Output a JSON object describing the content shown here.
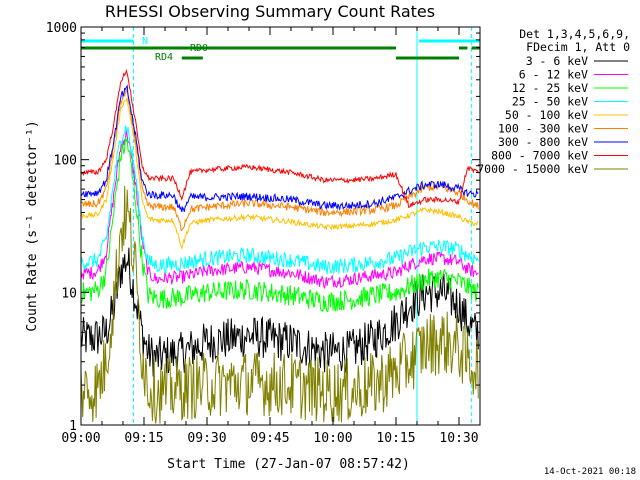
{
  "chart_data": {
    "type": "line",
    "title": "RHESSI Observing Summary Count Rates",
    "xlabel": "Start Time (27-Jan-07 08:57:42)",
    "ylabel": "Count Rate (s⁻¹ detector⁻¹)",
    "x_unit": "minutes after 09:00 UT",
    "xlim": [
      0,
      95
    ],
    "ylim": [
      1,
      1000
    ],
    "yscale": "log",
    "x_ticks": [
      {
        "value": 0,
        "label": "09:00"
      },
      {
        "value": 15,
        "label": "09:15"
      },
      {
        "value": 30,
        "label": "09:30"
      },
      {
        "value": 45,
        "label": "09:45"
      },
      {
        "value": 60,
        "label": "10:00"
      },
      {
        "value": 75,
        "label": "10:15"
      },
      {
        "value": 90,
        "label": "10:30"
      }
    ],
    "y_ticks": [
      {
        "value": 1,
        "label": "1"
      },
      {
        "value": 10,
        "label": "10"
      },
      {
        "value": 100,
        "label": "100"
      },
      {
        "value": 1000,
        "label": "1000"
      }
    ],
    "legend_header": [
      "Det 1,3,4,5,6,9,",
      "FDecim 1, Att 0"
    ],
    "legend_position": "right",
    "footer": "14-Oct-2021 00:18",
    "vertical_markers": [
      {
        "x": 0,
        "color": "#00ffff",
        "style": "solid"
      },
      {
        "x": 12.5,
        "color": "#00ffff",
        "style": "dashed"
      },
      {
        "x": 80,
        "color": "#00ffff",
        "style": "solid"
      },
      {
        "x": 93,
        "color": "#00ffff",
        "style": "dashed"
      }
    ],
    "flag_bars": [
      {
        "label": "N",
        "color": "#00ffff",
        "segments": [
          [
            0,
            12.5
          ],
          [
            80.5,
            95
          ]
        ],
        "level": 1
      },
      {
        "label": "RD0",
        "color": "#008000",
        "segments": [
          [
            0,
            75
          ],
          [
            90,
            92
          ],
          [
            93,
            95
          ]
        ],
        "level": 2
      },
      {
        "label": "RD4",
        "color": "#008000",
        "segments": [
          [
            24,
            29
          ],
          [
            75,
            90
          ]
        ],
        "level": 3
      }
    ],
    "series": [
      {
        "name": "3 - 6 keV",
        "color": "#000000",
        "noise": 0.16,
        "x": [
          0,
          2,
          4,
          6,
          8,
          9.5,
          11,
          13,
          14.5,
          16,
          18,
          20,
          24,
          30,
          40,
          50,
          58,
          64,
          70,
          75,
          78,
          82,
          86,
          90,
          92,
          94
        ],
        "y": [
          4.5,
          4.5,
          4.6,
          5,
          8,
          15,
          18,
          9,
          5,
          3.5,
          3.2,
          3.3,
          3.5,
          4.2,
          4.7,
          4.2,
          3.5,
          3.6,
          4.5,
          6,
          8,
          10,
          10,
          8,
          6,
          5
        ]
      },
      {
        "name": "6 - 12 keV",
        "color": "#ff00ff",
        "noise": 0.05,
        "x": [
          0,
          2,
          4,
          6,
          8,
          9.5,
          11,
          13,
          14.5,
          16,
          18,
          20,
          24,
          30,
          40,
          50,
          58,
          64,
          70,
          75,
          78,
          82,
          86,
          90,
          92,
          94
        ],
        "y": [
          14,
          14,
          14.5,
          20,
          60,
          130,
          160,
          65,
          25,
          14,
          12.5,
          12.8,
          13,
          14.5,
          15.5,
          14,
          12,
          12.5,
          13.5,
          14,
          16,
          18,
          18,
          17,
          15,
          14
        ]
      },
      {
        "name": "12 - 25 keV",
        "color": "#00ff00",
        "noise": 0.08,
        "x": [
          0,
          2,
          4,
          6,
          8,
          9.5,
          11,
          13,
          14.5,
          16,
          18,
          20,
          24,
          30,
          40,
          50,
          58,
          64,
          70,
          75,
          78,
          82,
          86,
          90,
          92,
          94
        ],
        "y": [
          10,
          10,
          10.5,
          14,
          45,
          110,
          140,
          50,
          18,
          9.5,
          9,
          9,
          9.2,
          10,
          10.5,
          9.5,
          8.5,
          8.8,
          9.5,
          10,
          11,
          12.5,
          13,
          12,
          11,
          10
        ]
      },
      {
        "name": "25 - 50 keV",
        "color": "#00ffff",
        "noise": 0.06,
        "x": [
          0,
          2,
          4,
          6,
          8,
          9.5,
          11,
          13,
          14.5,
          16,
          18,
          20,
          24,
          30,
          40,
          50,
          58,
          64,
          70,
          75,
          78,
          82,
          86,
          90,
          92,
          94
        ],
        "y": [
          17,
          17,
          17.5,
          25,
          75,
          150,
          180,
          75,
          28,
          17,
          16,
          16,
          16.5,
          18,
          19,
          17.5,
          15.5,
          16,
          17,
          18,
          20,
          22,
          22,
          21,
          19,
          18
        ]
      },
      {
        "name": "50 - 100 keV",
        "color": "#ffc000",
        "noise": 0.02,
        "x": [
          0,
          2,
          4,
          6,
          8,
          9.5,
          11,
          13,
          14.5,
          16,
          18,
          20,
          22,
          24,
          26,
          30,
          40,
          50,
          58,
          64,
          70,
          75,
          78,
          82,
          86,
          90,
          92,
          94
        ],
        "y": [
          38,
          38,
          38.5,
          50,
          120,
          250,
          290,
          120,
          50,
          36,
          35,
          35,
          35,
          22,
          33,
          35,
          37,
          34,
          31,
          31.5,
          33,
          35,
          38,
          42,
          40,
          37,
          34,
          33
        ]
      },
      {
        "name": "100 - 300 keV",
        "color": "#ff8000",
        "noise": 0.03,
        "x": [
          0,
          2,
          4,
          6,
          8,
          9.5,
          11,
          13,
          14.5,
          16,
          18,
          20,
          22,
          24,
          26,
          30,
          40,
          50,
          58,
          64,
          70,
          75,
          78,
          82,
          86,
          90,
          92,
          94
        ],
        "y": [
          46,
          46,
          46.5,
          60,
          140,
          280,
          320,
          140,
          60,
          45,
          44,
          44,
          44,
          30,
          42,
          44,
          47,
          44,
          40,
          40.5,
          42,
          45,
          52,
          62,
          62,
          56,
          50,
          45
        ]
      },
      {
        "name": "300 - 800 keV",
        "color": "#0000ff",
        "noise": 0.03,
        "x": [
          0,
          2,
          4,
          6,
          8,
          9.5,
          11,
          13,
          14.5,
          16,
          18,
          20,
          22,
          24,
          26,
          30,
          40,
          50,
          58,
          64,
          70,
          75,
          78,
          82,
          86,
          90,
          92,
          94
        ],
        "y": [
          56,
          56,
          56.5,
          70,
          150,
          300,
          340,
          150,
          70,
          55,
          54,
          54,
          54,
          40,
          52,
          52,
          53,
          50,
          45,
          45,
          47,
          52,
          58,
          65,
          65,
          60,
          56,
          55
        ]
      },
      {
        "name": "800 - 7000 keV",
        "color": "#ff0000",
        "noise": 0.02,
        "x": [
          0,
          2,
          4,
          6,
          8,
          9.5,
          11,
          13,
          14.5,
          16,
          18,
          20,
          22,
          24,
          26,
          30,
          40,
          50,
          58,
          64,
          70,
          75,
          78,
          82,
          86,
          90,
          92,
          94
        ],
        "y": [
          80,
          80,
          80.5,
          100,
          200,
          400,
          460,
          190,
          90,
          73,
          72,
          72,
          72,
          52,
          80,
          84,
          88,
          80,
          70,
          70,
          72,
          78,
          45,
          50,
          50,
          48,
          87,
          82
        ]
      },
      {
        "name": "7000 - 15000 keV",
        "color": "#808000",
        "noise": 0.25,
        "x": [
          0,
          2,
          4,
          6,
          8,
          9.5,
          11,
          13,
          14.5,
          16,
          18,
          20,
          24,
          30,
          40,
          50,
          58,
          64,
          70,
          75,
          78,
          82,
          86,
          90,
          92,
          94
        ],
        "y": [
          1.8,
          1.8,
          1.9,
          3,
          10,
          30,
          42,
          14,
          3.5,
          2,
          1.8,
          1.8,
          1.9,
          2,
          2.1,
          2,
          1.8,
          1.8,
          2,
          2.5,
          3,
          4,
          4.3,
          3.8,
          3,
          2.8
        ]
      }
    ]
  }
}
